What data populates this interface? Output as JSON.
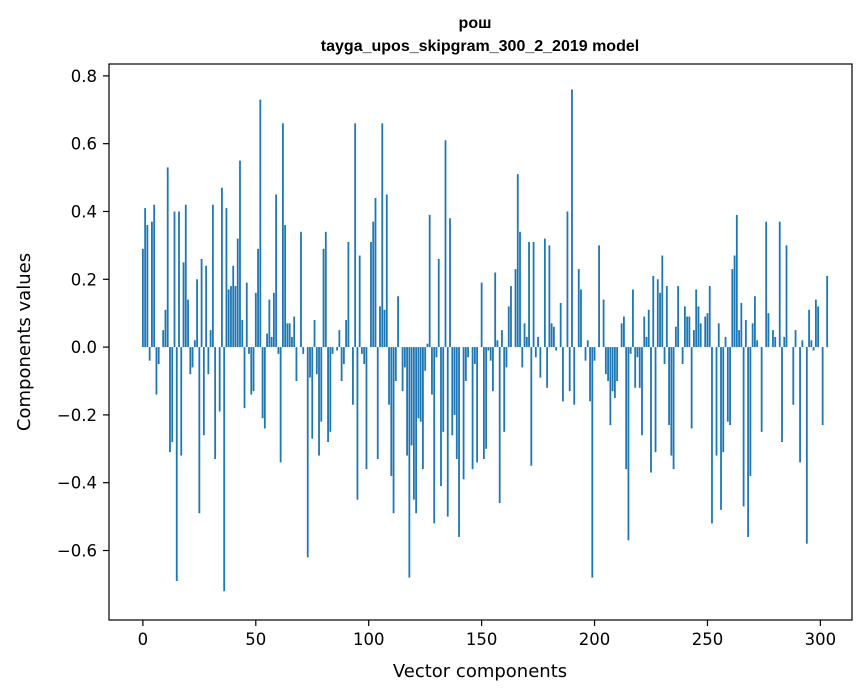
{
  "chart_data": {
    "type": "bar",
    "title": "рош",
    "subtitle": "tayga_upos_skipgram_300_2_2019 model",
    "xlabel": "Vector components",
    "ylabel": "Components values",
    "xlim": [
      -15,
      314
    ],
    "ylim": [
      -0.805,
      0.835
    ],
    "xticks": [
      0,
      50,
      100,
      150,
      200,
      250,
      300
    ],
    "xtick_labels": [
      "0",
      "50",
      "100",
      "150",
      "200",
      "250",
      "300"
    ],
    "yticks": [
      -0.6,
      -0.4,
      -0.2,
      0.0,
      0.2,
      0.4,
      0.6,
      0.8
    ],
    "ytick_labels": [
      "−0.6",
      "−0.4",
      "−0.2",
      "0.0",
      "0.2",
      "0.4",
      "0.6",
      "0.8"
    ],
    "bar_color": "#1f77b4",
    "grid": false,
    "values": [
      0.29,
      0.41,
      0.36,
      -0.04,
      0.37,
      0.42,
      -0.14,
      -0.05,
      0.0,
      0.05,
      0.11,
      0.53,
      -0.31,
      -0.28,
      0.4,
      -0.69,
      0.4,
      -0.32,
      0.25,
      0.42,
      0.14,
      -0.08,
      -0.06,
      0.02,
      0.2,
      -0.49,
      0.26,
      -0.26,
      0.24,
      -0.08,
      0.05,
      0.42,
      -0.33,
      0.0,
      -0.19,
      0.47,
      -0.72,
      0.41,
      0.17,
      0.18,
      0.24,
      0.18,
      0.32,
      0.55,
      0.08,
      -0.18,
      0.19,
      -0.02,
      -0.14,
      -0.13,
      0.16,
      0.29,
      0.73,
      -0.21,
      -0.24,
      0.04,
      0.14,
      0.03,
      0.16,
      0.45,
      -0.02,
      -0.34,
      0.66,
      0.36,
      0.07,
      0.07,
      0.03,
      0.09,
      -0.1,
      0.0,
      0.34,
      -0.02,
      0.0,
      -0.62,
      -0.09,
      -0.27,
      0.08,
      -0.08,
      -0.32,
      -0.22,
      0.29,
      0.34,
      -0.28,
      -0.25,
      -0.02,
      0.0,
      -0.01,
      0.05,
      -0.1,
      -0.05,
      0.08,
      0.31,
      0.0,
      -0.17,
      0.66,
      -0.45,
      0.27,
      -0.02,
      -0.05,
      -0.36,
      0.0,
      0.31,
      0.37,
      0.44,
      -0.33,
      0.12,
      0.66,
      0.11,
      0.45,
      -0.17,
      -0.38,
      -0.49,
      -0.1,
      0.15,
      0.0,
      -0.13,
      -0.06,
      -0.32,
      -0.68,
      -0.29,
      -0.45,
      -0.49,
      -0.21,
      -0.22,
      -0.36,
      -0.07,
      0.01,
      0.39,
      -0.14,
      -0.52,
      -0.03,
      0.26,
      -0.41,
      -0.25,
      0.61,
      -0.5,
      0.38,
      -0.26,
      -0.2,
      -0.33,
      -0.56,
      0.0,
      -0.39,
      -0.1,
      -0.03,
      0.0,
      -0.36,
      -0.05,
      -0.34,
      0.0,
      0.19,
      -0.33,
      -0.3,
      -0.01,
      -0.04,
      -0.13,
      0.22,
      0.02,
      -0.46,
      0.05,
      -0.25,
      -0.06,
      0.12,
      0.18,
      0.0,
      0.23,
      0.51,
      0.34,
      -0.06,
      0.07,
      0.03,
      0.31,
      -0.35,
      0.31,
      -0.03,
      0.03,
      -0.09,
      0.0,
      0.32,
      -0.12,
      0.3,
      0.07,
      0.06,
      -0.01,
      0.0,
      0.13,
      -0.16,
      0.0,
      0.4,
      -0.13,
      0.76,
      -0.17,
      0.0,
      0.23,
      0.17,
      0.0,
      -0.04,
      0.02,
      -0.16,
      -0.68,
      -0.04,
      0.0,
      0.3,
      0.0,
      0.14,
      -0.08,
      -0.1,
      -0.23,
      -0.13,
      -0.15,
      -0.1,
      0.0,
      0.07,
      0.09,
      -0.36,
      -0.57,
      -0.02,
      0.17,
      -0.12,
      -0.03,
      -0.12,
      -0.26,
      0.09,
      0.03,
      0.11,
      -0.37,
      0.21,
      -0.31,
      0.2,
      0.16,
      0.27,
      -0.05,
      0.18,
      -0.23,
      -0.32,
      -0.36,
      0.06,
      0.18,
      0.0,
      -0.05,
      0.12,
      0.09,
      0.09,
      -0.24,
      0.05,
      0.17,
      0.12,
      0.07,
      0.0,
      0.09,
      0.1,
      0.18,
      -0.52,
      0.0,
      -0.32,
      0.07,
      -0.48,
      -0.31,
      0.03,
      -0.22,
      -0.23,
      0.23,
      0.27,
      0.39,
      0.05,
      0.13,
      -0.47,
      0.08,
      -0.56,
      -0.38,
      0.07,
      0.15,
      0.02,
      0.0,
      -0.25,
      0.0,
      0.37,
      0.1,
      0.0,
      0.05,
      0.03,
      0.0,
      0.37,
      -0.28,
      0.03,
      0.3,
      0.0,
      0.0,
      -0.17,
      0.05,
      0.0,
      -0.34,
      0.02,
      0.0,
      -0.58,
      0.11,
      0.02,
      -0.01,
      0.14,
      0.12,
      0.0,
      -0.23,
      0.0,
      0.21
    ]
  }
}
